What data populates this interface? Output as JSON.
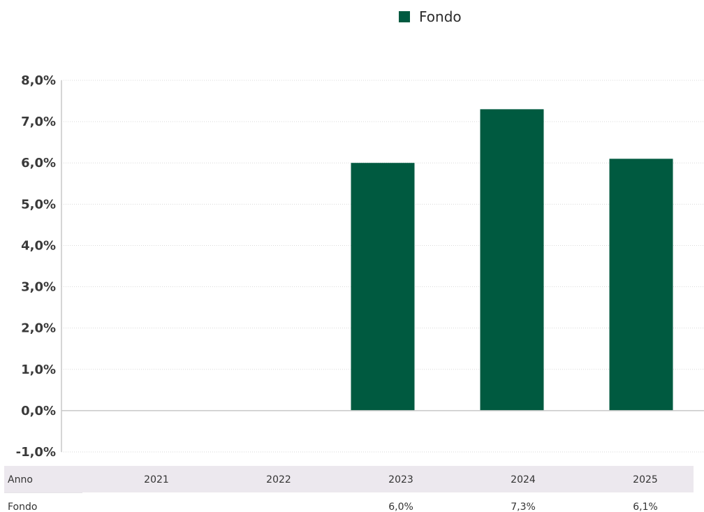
{
  "colors": {
    "bar": "#005a40",
    "grid": "#d9d9d9",
    "axis": "#c8c8c8",
    "table_header_bg": "#ece8ee"
  },
  "legend": {
    "label": "Fondo"
  },
  "table": {
    "header_label": "Anno",
    "row_label": "Fondo",
    "years": [
      "2021",
      "2022",
      "2023",
      "2024",
      "2025"
    ],
    "values": [
      "",
      "",
      "6,0%",
      "7,3%",
      "6,1%"
    ]
  },
  "chart_data": {
    "type": "bar",
    "title": "",
    "xlabel": "",
    "ylabel": "",
    "categories": [
      "2021",
      "2022",
      "2023",
      "2024",
      "2025"
    ],
    "series": [
      {
        "name": "Fondo",
        "values": [
          null,
          null,
          6.0,
          7.3,
          6.1
        ]
      }
    ],
    "ylim": [
      -1,
      8
    ],
    "yticks": [
      8,
      7,
      6,
      5,
      4,
      3,
      2,
      1,
      0,
      -1
    ],
    "ytick_labels": [
      "8,0%",
      "7,0%",
      "6,0%",
      "5,0%",
      "4,0%",
      "3,0%",
      "2,0%",
      "1,0%",
      "0,0%",
      "-1,0%"
    ],
    "grid": true,
    "legend_position": "top"
  }
}
